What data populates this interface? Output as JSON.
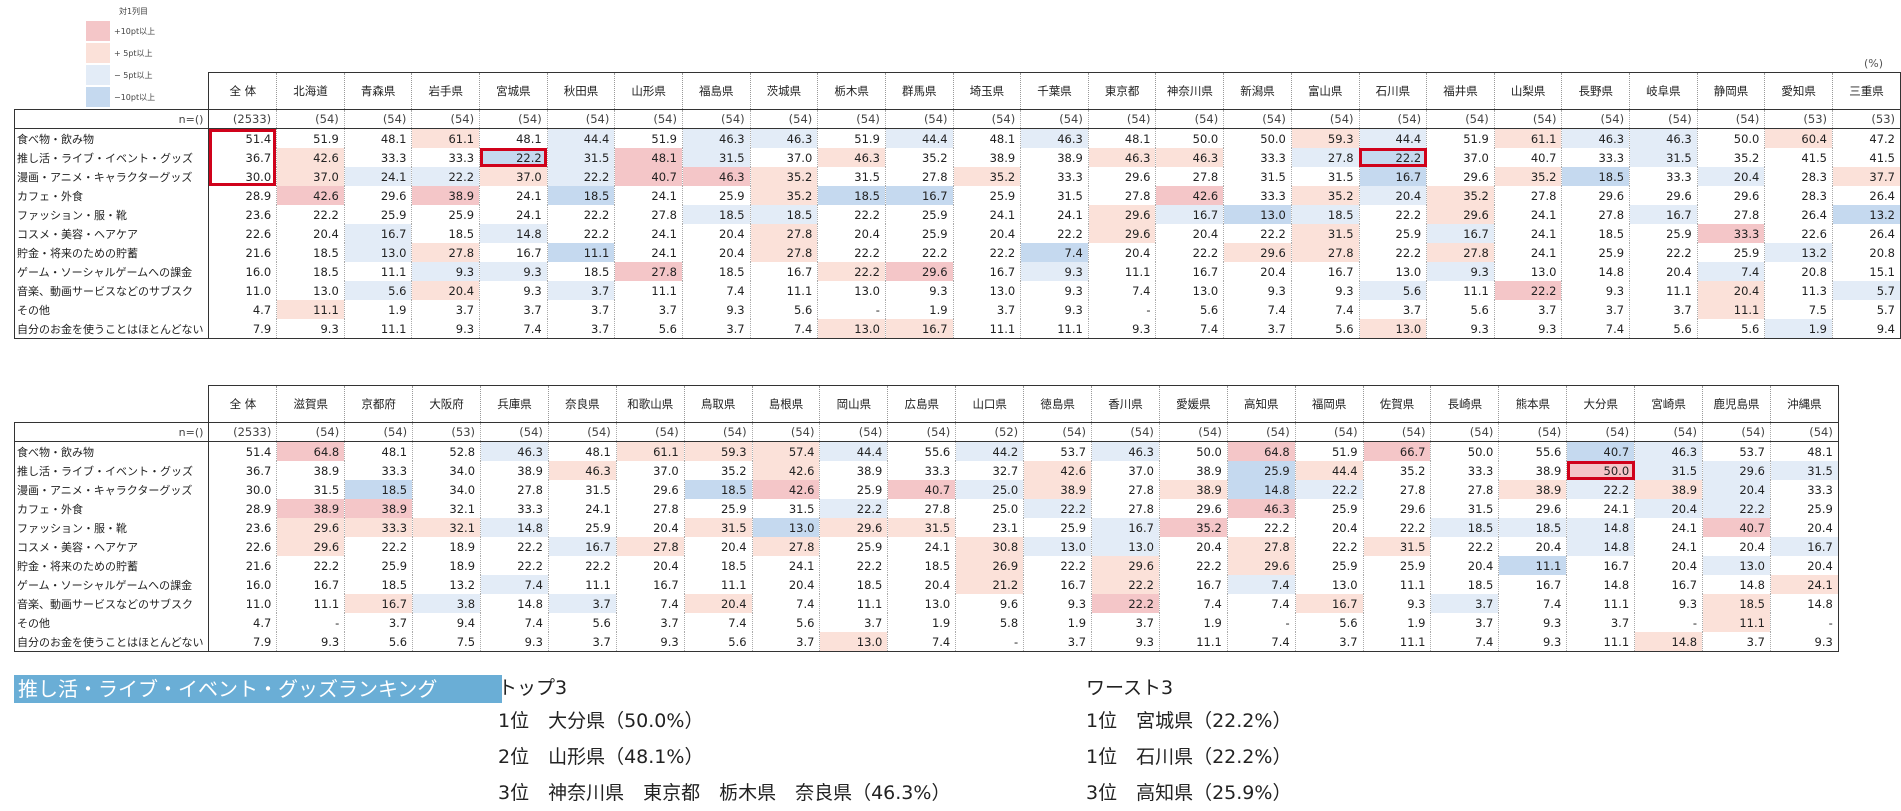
{
  "legend": {
    "title": "対1列目",
    "items": [
      {
        "label": "+10pt以上",
        "color": "#f4c6c8"
      },
      {
        "label": "+ 5pt以上",
        "color": "#fbe1d9"
      },
      {
        "label": "− 5pt以上",
        "color": "#e3ecf7"
      },
      {
        "label": "−10pt以上",
        "color": "#c5d9ef"
      }
    ]
  },
  "unit": "(%)",
  "row_labels": [
    "食べ物・飲み物",
    "推し活・ライブ・イベント・グッズ",
    "漫画・アニメ・キャラクターグッズ",
    "カフェ・外食",
    "ファッション・服・靴",
    "コスメ・美容・ヘアケア",
    "貯金・将来のための貯蓄",
    "ゲーム・ソーシャルゲームへの課金",
    "音楽、動画サービスなどのサブスク",
    "その他",
    "自分のお金を使うことはほとんどない"
  ],
  "n_label": "n=()",
  "table1": {
    "columns": [
      "全 体",
      "北海道",
      "青森県",
      "岩手県",
      "宮城県",
      "秋田県",
      "山形県",
      "福島県",
      "茨城県",
      "栃木県",
      "群馬県",
      "埼玉県",
      "千葉県",
      "東京都",
      "神奈川県",
      "新潟県",
      "富山県",
      "石川県",
      "福井県",
      "山梨県",
      "長野県",
      "岐阜県",
      "静岡県",
      "愛知県",
      "三重県"
    ],
    "n": [
      "(2533)",
      "(54)",
      "(54)",
      "(54)",
      "(54)",
      "(54)",
      "(54)",
      "(54)",
      "(54)",
      "(54)",
      "(54)",
      "(54)",
      "(54)",
      "(54)",
      "(54)",
      "(54)",
      "(54)",
      "(54)",
      "(54)",
      "(54)",
      "(54)",
      "(54)",
      "(54)",
      "(53)",
      "(53)"
    ],
    "rows": [
      [
        "51.4",
        "51.9",
        "48.1",
        "61.1",
        "48.1",
        "44.4",
        "51.9",
        "46.3",
        "46.3",
        "51.9",
        "44.4",
        "48.1",
        "46.3",
        "48.1",
        "50.0",
        "50.0",
        "59.3",
        "44.4",
        "51.9",
        "61.1",
        "46.3",
        "46.3",
        "50.0",
        "60.4",
        "47.2"
      ],
      [
        "36.7",
        "42.6",
        "33.3",
        "33.3",
        "22.2",
        "31.5",
        "48.1",
        "31.5",
        "37.0",
        "46.3",
        "35.2",
        "38.9",
        "38.9",
        "46.3",
        "46.3",
        "33.3",
        "27.8",
        "22.2",
        "37.0",
        "40.7",
        "33.3",
        "31.5",
        "35.2",
        "41.5",
        "41.5"
      ],
      [
        "30.0",
        "37.0",
        "24.1",
        "22.2",
        "37.0",
        "22.2",
        "40.7",
        "46.3",
        "35.2",
        "31.5",
        "27.8",
        "35.2",
        "33.3",
        "29.6",
        "27.8",
        "31.5",
        "31.5",
        "16.7",
        "29.6",
        "35.2",
        "18.5",
        "33.3",
        "20.4",
        "28.3",
        "37.7"
      ],
      [
        "28.9",
        "42.6",
        "29.6",
        "38.9",
        "24.1",
        "18.5",
        "24.1",
        "25.9",
        "35.2",
        "18.5",
        "16.7",
        "25.9",
        "31.5",
        "27.8",
        "42.6",
        "33.3",
        "35.2",
        "20.4",
        "35.2",
        "27.8",
        "29.6",
        "29.6",
        "29.6",
        "28.3",
        "26.4"
      ],
      [
        "23.6",
        "22.2",
        "25.9",
        "25.9",
        "24.1",
        "22.2",
        "27.8",
        "18.5",
        "18.5",
        "22.2",
        "25.9",
        "24.1",
        "24.1",
        "29.6",
        "16.7",
        "13.0",
        "18.5",
        "22.2",
        "29.6",
        "24.1",
        "27.8",
        "16.7",
        "27.8",
        "26.4",
        "13.2"
      ],
      [
        "22.6",
        "20.4",
        "16.7",
        "18.5",
        "14.8",
        "22.2",
        "24.1",
        "20.4",
        "27.8",
        "20.4",
        "25.9",
        "20.4",
        "22.2",
        "29.6",
        "20.4",
        "22.2",
        "31.5",
        "25.9",
        "16.7",
        "24.1",
        "18.5",
        "25.9",
        "33.3",
        "22.6",
        "26.4"
      ],
      [
        "21.6",
        "18.5",
        "13.0",
        "27.8",
        "16.7",
        "11.1",
        "24.1",
        "20.4",
        "27.8",
        "22.2",
        "22.2",
        "22.2",
        "7.4",
        "20.4",
        "22.2",
        "29.6",
        "27.8",
        "22.2",
        "27.8",
        "24.1",
        "25.9",
        "22.2",
        "25.9",
        "13.2",
        "20.8"
      ],
      [
        "16.0",
        "18.5",
        "11.1",
        "9.3",
        "9.3",
        "18.5",
        "27.8",
        "18.5",
        "16.7",
        "22.2",
        "29.6",
        "16.7",
        "9.3",
        "11.1",
        "16.7",
        "20.4",
        "16.7",
        "13.0",
        "9.3",
        "13.0",
        "14.8",
        "20.4",
        "7.4",
        "20.8",
        "15.1"
      ],
      [
        "11.0",
        "13.0",
        "5.6",
        "20.4",
        "9.3",
        "3.7",
        "11.1",
        "7.4",
        "11.1",
        "13.0",
        "9.3",
        "13.0",
        "9.3",
        "7.4",
        "13.0",
        "9.3",
        "9.3",
        "5.6",
        "11.1",
        "22.2",
        "9.3",
        "11.1",
        "20.4",
        "11.3",
        "5.7"
      ],
      [
        "4.7",
        "11.1",
        "1.9",
        "3.7",
        "3.7",
        "3.7",
        "3.7",
        "9.3",
        "5.6",
        "-",
        "1.9",
        "3.7",
        "9.3",
        "-",
        "5.6",
        "7.4",
        "7.4",
        "3.7",
        "5.6",
        "3.7",
        "3.7",
        "3.7",
        "11.1",
        "7.5",
        "5.7"
      ],
      [
        "7.9",
        "9.3",
        "11.1",
        "9.3",
        "7.4",
        "3.7",
        "5.6",
        "3.7",
        "7.4",
        "13.0",
        "16.7",
        "11.1",
        "11.1",
        "9.3",
        "7.4",
        "3.7",
        "5.6",
        "13.0",
        "9.3",
        "9.3",
        "7.4",
        "5.6",
        "5.6",
        "1.9",
        "9.4"
      ]
    ]
  },
  "table2": {
    "columns": [
      "全 体",
      "滋賀県",
      "京都府",
      "大阪府",
      "兵庫県",
      "奈良県",
      "和歌山県",
      "鳥取県",
      "島根県",
      "岡山県",
      "広島県",
      "山口県",
      "徳島県",
      "香川県",
      "愛媛県",
      "高知県",
      "福岡県",
      "佐賀県",
      "長崎県",
      "熊本県",
      "大分県",
      "宮崎県",
      "鹿児島県",
      "沖縄県"
    ],
    "n": [
      "(2533)",
      "(54)",
      "(54)",
      "(53)",
      "(54)",
      "(54)",
      "(54)",
      "(54)",
      "(54)",
      "(54)",
      "(54)",
      "(52)",
      "(54)",
      "(54)",
      "(54)",
      "(54)",
      "(54)",
      "(54)",
      "(54)",
      "(54)",
      "(54)",
      "(54)",
      "(54)",
      "(54)"
    ],
    "rows": [
      [
        "51.4",
        "64.8",
        "48.1",
        "52.8",
        "46.3",
        "48.1",
        "61.1",
        "59.3",
        "57.4",
        "44.4",
        "55.6",
        "44.2",
        "53.7",
        "46.3",
        "50.0",
        "64.8",
        "51.9",
        "66.7",
        "50.0",
        "55.6",
        "40.7",
        "46.3",
        "53.7",
        "48.1"
      ],
      [
        "36.7",
        "38.9",
        "33.3",
        "34.0",
        "38.9",
        "46.3",
        "37.0",
        "35.2",
        "42.6",
        "38.9",
        "33.3",
        "32.7",
        "42.6",
        "37.0",
        "38.9",
        "25.9",
        "44.4",
        "35.2",
        "33.3",
        "38.9",
        "50.0",
        "31.5",
        "29.6",
        "31.5"
      ],
      [
        "30.0",
        "31.5",
        "18.5",
        "34.0",
        "27.8",
        "31.5",
        "29.6",
        "18.5",
        "42.6",
        "25.9",
        "40.7",
        "25.0",
        "38.9",
        "27.8",
        "38.9",
        "14.8",
        "22.2",
        "27.8",
        "27.8",
        "38.9",
        "22.2",
        "38.9",
        "20.4",
        "33.3"
      ],
      [
        "28.9",
        "38.9",
        "38.9",
        "32.1",
        "33.3",
        "24.1",
        "27.8",
        "25.9",
        "31.5",
        "22.2",
        "27.8",
        "25.0",
        "22.2",
        "27.8",
        "29.6",
        "46.3",
        "25.9",
        "29.6",
        "31.5",
        "29.6",
        "24.1",
        "20.4",
        "22.2",
        "25.9"
      ],
      [
        "23.6",
        "29.6",
        "33.3",
        "32.1",
        "14.8",
        "25.9",
        "20.4",
        "31.5",
        "13.0",
        "29.6",
        "31.5",
        "23.1",
        "25.9",
        "16.7",
        "35.2",
        "22.2",
        "20.4",
        "22.2",
        "18.5",
        "18.5",
        "14.8",
        "24.1",
        "40.7",
        "20.4"
      ],
      [
        "22.6",
        "29.6",
        "22.2",
        "18.9",
        "22.2",
        "16.7",
        "27.8",
        "20.4",
        "27.8",
        "25.9",
        "24.1",
        "30.8",
        "13.0",
        "13.0",
        "20.4",
        "27.8",
        "22.2",
        "31.5",
        "22.2",
        "20.4",
        "14.8",
        "24.1",
        "20.4",
        "16.7"
      ],
      [
        "21.6",
        "22.2",
        "25.9",
        "18.9",
        "22.2",
        "22.2",
        "20.4",
        "18.5",
        "24.1",
        "22.2",
        "18.5",
        "26.9",
        "22.2",
        "29.6",
        "22.2",
        "29.6",
        "25.9",
        "25.9",
        "20.4",
        "11.1",
        "16.7",
        "20.4",
        "13.0",
        "20.4"
      ],
      [
        "16.0",
        "16.7",
        "18.5",
        "13.2",
        "7.4",
        "11.1",
        "16.7",
        "11.1",
        "20.4",
        "18.5",
        "20.4",
        "21.2",
        "16.7",
        "22.2",
        "16.7",
        "7.4",
        "13.0",
        "11.1",
        "18.5",
        "16.7",
        "14.8",
        "16.7",
        "14.8",
        "24.1"
      ],
      [
        "11.0",
        "11.1",
        "16.7",
        "3.8",
        "14.8",
        "3.7",
        "7.4",
        "20.4",
        "7.4",
        "11.1",
        "13.0",
        "9.6",
        "9.3",
        "22.2",
        "7.4",
        "7.4",
        "16.7",
        "9.3",
        "3.7",
        "7.4",
        "11.1",
        "9.3",
        "18.5",
        "14.8"
      ],
      [
        "4.7",
        "-",
        "3.7",
        "9.4",
        "7.4",
        "5.6",
        "3.7",
        "7.4",
        "5.6",
        "3.7",
        "1.9",
        "5.8",
        "1.9",
        "3.7",
        "1.9",
        "-",
        "5.6",
        "1.9",
        "3.7",
        "9.3",
        "3.7",
        "-",
        "11.1",
        "-"
      ],
      [
        "7.9",
        "9.3",
        "5.6",
        "7.5",
        "9.3",
        "3.7",
        "9.3",
        "5.6",
        "3.7",
        "13.0",
        "7.4",
        "-",
        "3.7",
        "9.3",
        "11.1",
        "7.4",
        "3.7",
        "11.1",
        "7.4",
        "9.3",
        "11.1",
        "14.8",
        "3.7",
        "9.3"
      ]
    ]
  },
  "ranking": {
    "title": "推し活・ライブ・イベント・グッズランキング",
    "top_heading": "トップ3",
    "top": [
      "1位　大分県（50.0%）",
      "2位　山形県（48.1%）",
      "3位　神奈川県　東京都　栃木県　奈良県（46.3%）"
    ],
    "worst_heading": "ワースト3",
    "worst": [
      "1位　宮城県（22.2%）",
      "1位　石川県（22.2%）",
      "3位　高知県（25.9%）"
    ]
  }
}
